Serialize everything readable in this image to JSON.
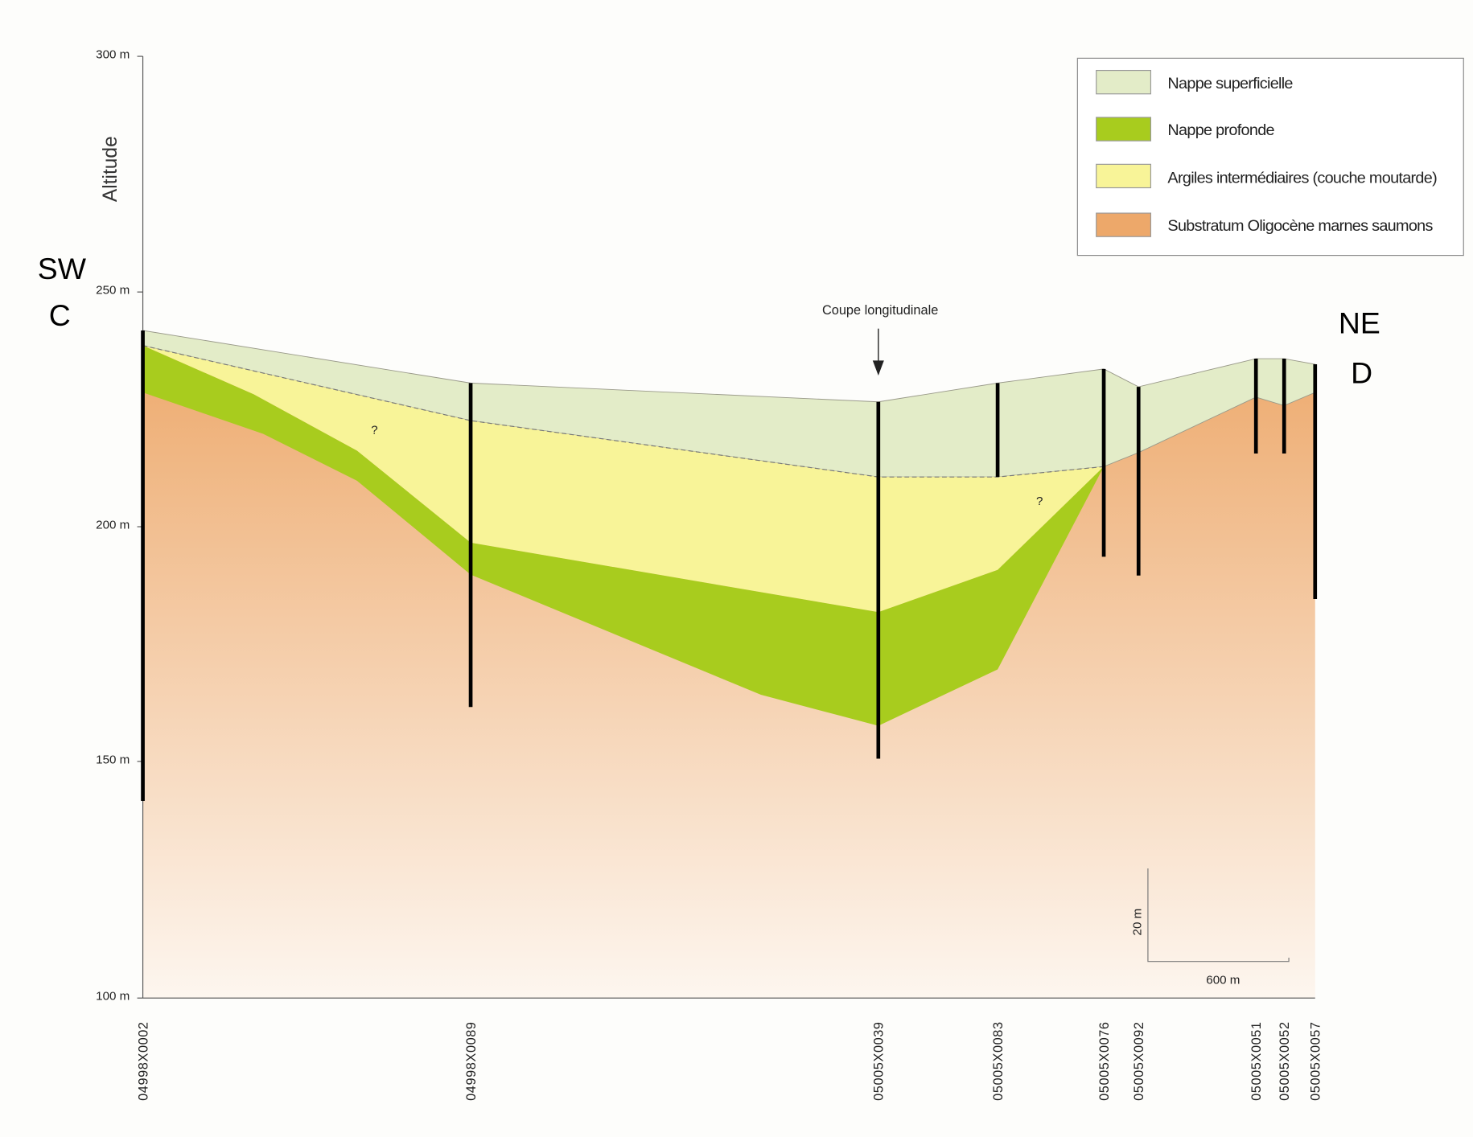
{
  "axis": {
    "title": "Altitude",
    "ticks": [
      "300 m",
      "250 m",
      "200 m",
      "150 m",
      "100 m"
    ]
  },
  "ends": {
    "left": [
      "SW",
      "C"
    ],
    "right": [
      "NE",
      "D"
    ]
  },
  "annotations": {
    "section": "Coupe longitudinale",
    "unknown_1": "?",
    "unknown_2": "?"
  },
  "scale_bar": {
    "vertical": "20 m",
    "horizontal": "600 m"
  },
  "legend": [
    "Nappe superficielle",
    "Nappe profonde",
    "Argiles intermédiaires (couche moutarde)",
    "Substratum Oligocène marnes saumons"
  ],
  "boreholes": [
    "04998X0002",
    "04998X0089",
    "05005X0039",
    "05005X0083",
    "05005X0076",
    "05005X0092",
    "05005X0051",
    "05005X0052",
    "05005X0057"
  ]
}
